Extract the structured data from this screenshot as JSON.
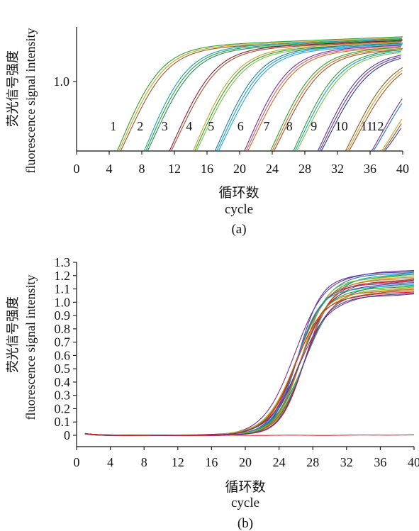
{
  "chart_data": [
    {
      "panel_label": "(a)",
      "type": "line",
      "xlabel_zh": "循环数",
      "xlabel_en": "cycle",
      "ylabel_zh": "荧光信号强度",
      "ylabel_en": "fluorescence signal intensity",
      "x_ticks": [
        0,
        4,
        8,
        12,
        16,
        20,
        24,
        28,
        32,
        36,
        40
      ],
      "y_ticks": [
        "1.0"
      ],
      "xlim": [
        0,
        40
      ],
      "log_y": true,
      "curve_labels": [
        "1",
        "2",
        "3",
        "4",
        "5",
        "6",
        "7",
        "8",
        "9",
        "10",
        "11",
        "12"
      ],
      "series": [
        {
          "label": "1",
          "start_cycle": 5.2,
          "midpoint": 7.8,
          "plateau": 1.33,
          "colors": [
            "#2ca02c",
            "#c9a227",
            "#8c5a2b"
          ]
        },
        {
          "label": "2",
          "start_cycle": 8.5,
          "midpoint": 11.0,
          "plateau": 1.32,
          "colors": [
            "#17a2b8",
            "#2ca02c",
            "#1f8a70"
          ]
        },
        {
          "label": "3",
          "start_cycle": 11.5,
          "midpoint": 14.2,
          "plateau": 1.31,
          "colors": [
            "#8b1a3a",
            "#a0522d"
          ]
        },
        {
          "label": "4",
          "start_cycle": 14.5,
          "midpoint": 17.0,
          "plateau": 1.3,
          "colors": [
            "#c9a227",
            "#2ca02c",
            "#7fbf3f"
          ]
        },
        {
          "label": "5",
          "start_cycle": 17.2,
          "midpoint": 19.8,
          "plateau": 1.3,
          "colors": [
            "#1f77b4",
            "#17a2b8",
            "#2a9df4"
          ]
        },
        {
          "label": "6",
          "start_cycle": 20.8,
          "midpoint": 23.3,
          "plateau": 1.29,
          "colors": [
            "#7b2d8b",
            "#c06080",
            "#d2691e"
          ]
        },
        {
          "label": "7",
          "start_cycle": 24.0,
          "midpoint": 26.6,
          "plateau": 1.28,
          "colors": [
            "#2ca02c",
            "#d2691e",
            "#8c5a2b"
          ]
        },
        {
          "label": "8",
          "start_cycle": 26.8,
          "midpoint": 29.4,
          "plateau": 1.27,
          "colors": [
            "#2ca02c",
            "#17a2b8",
            "#7fbf3f"
          ]
        },
        {
          "label": "9",
          "start_cycle": 29.8,
          "midpoint": 32.4,
          "plateau": 1.25,
          "colors": [
            "#4b3c9b",
            "#7b2d8b",
            "#1f3f8f"
          ]
        },
        {
          "label": "10",
          "start_cycle": 33.2,
          "midpoint": 35.9,
          "plateau": 1.22,
          "colors": [
            "#8c5a2b",
            "#c9a227",
            "#a0522d"
          ]
        },
        {
          "label": "11",
          "start_cycle": 36.3,
          "midpoint": 39.2,
          "plateau": 1.18,
          "colors": [
            "#7b2d8b",
            "#1f77b4"
          ]
        },
        {
          "label": "12",
          "start_cycle": 37.6,
          "midpoint": 41.0,
          "plateau": 1.15,
          "colors": [
            "#c9a227",
            "#8c5a2b",
            "#4b3c9b"
          ]
        }
      ]
    },
    {
      "panel_label": "(b)",
      "type": "line",
      "xlabel_zh": "循环数",
      "xlabel_en": "cycle",
      "ylabel_zh": "荧光信号强度",
      "ylabel_en": "fluorescence signal intensity",
      "x_ticks": [
        0,
        4,
        8,
        12,
        16,
        20,
        24,
        28,
        32,
        36,
        40
      ],
      "y_ticks": [
        "0",
        "0.1",
        "0.2",
        "0.3",
        "0.4",
        "0.5",
        "0.6",
        "0.7",
        "0.8",
        "0.9",
        "1.0",
        "1.1",
        "1.2",
        "1.3"
      ],
      "xlim": [
        0,
        40
      ],
      "ylim": [
        -0.05,
        1.3
      ],
      "amplification_curves": {
        "midpoint_range": [
          25.8,
          27.2
        ],
        "plateau_range": [
          1.09,
          1.27
        ],
        "colors": [
          "#7b2d8b",
          "#4b3c9b",
          "#1f77b4",
          "#17a2b8",
          "#2ca02c",
          "#7fbf3f",
          "#c9a227",
          "#d2691e",
          "#8c5a2b",
          "#e31a1c"
        ]
      },
      "baseline_curve": {
        "value_start": 0.012,
        "value_end": 0.005,
        "color": "#e31a1c"
      }
    }
  ]
}
